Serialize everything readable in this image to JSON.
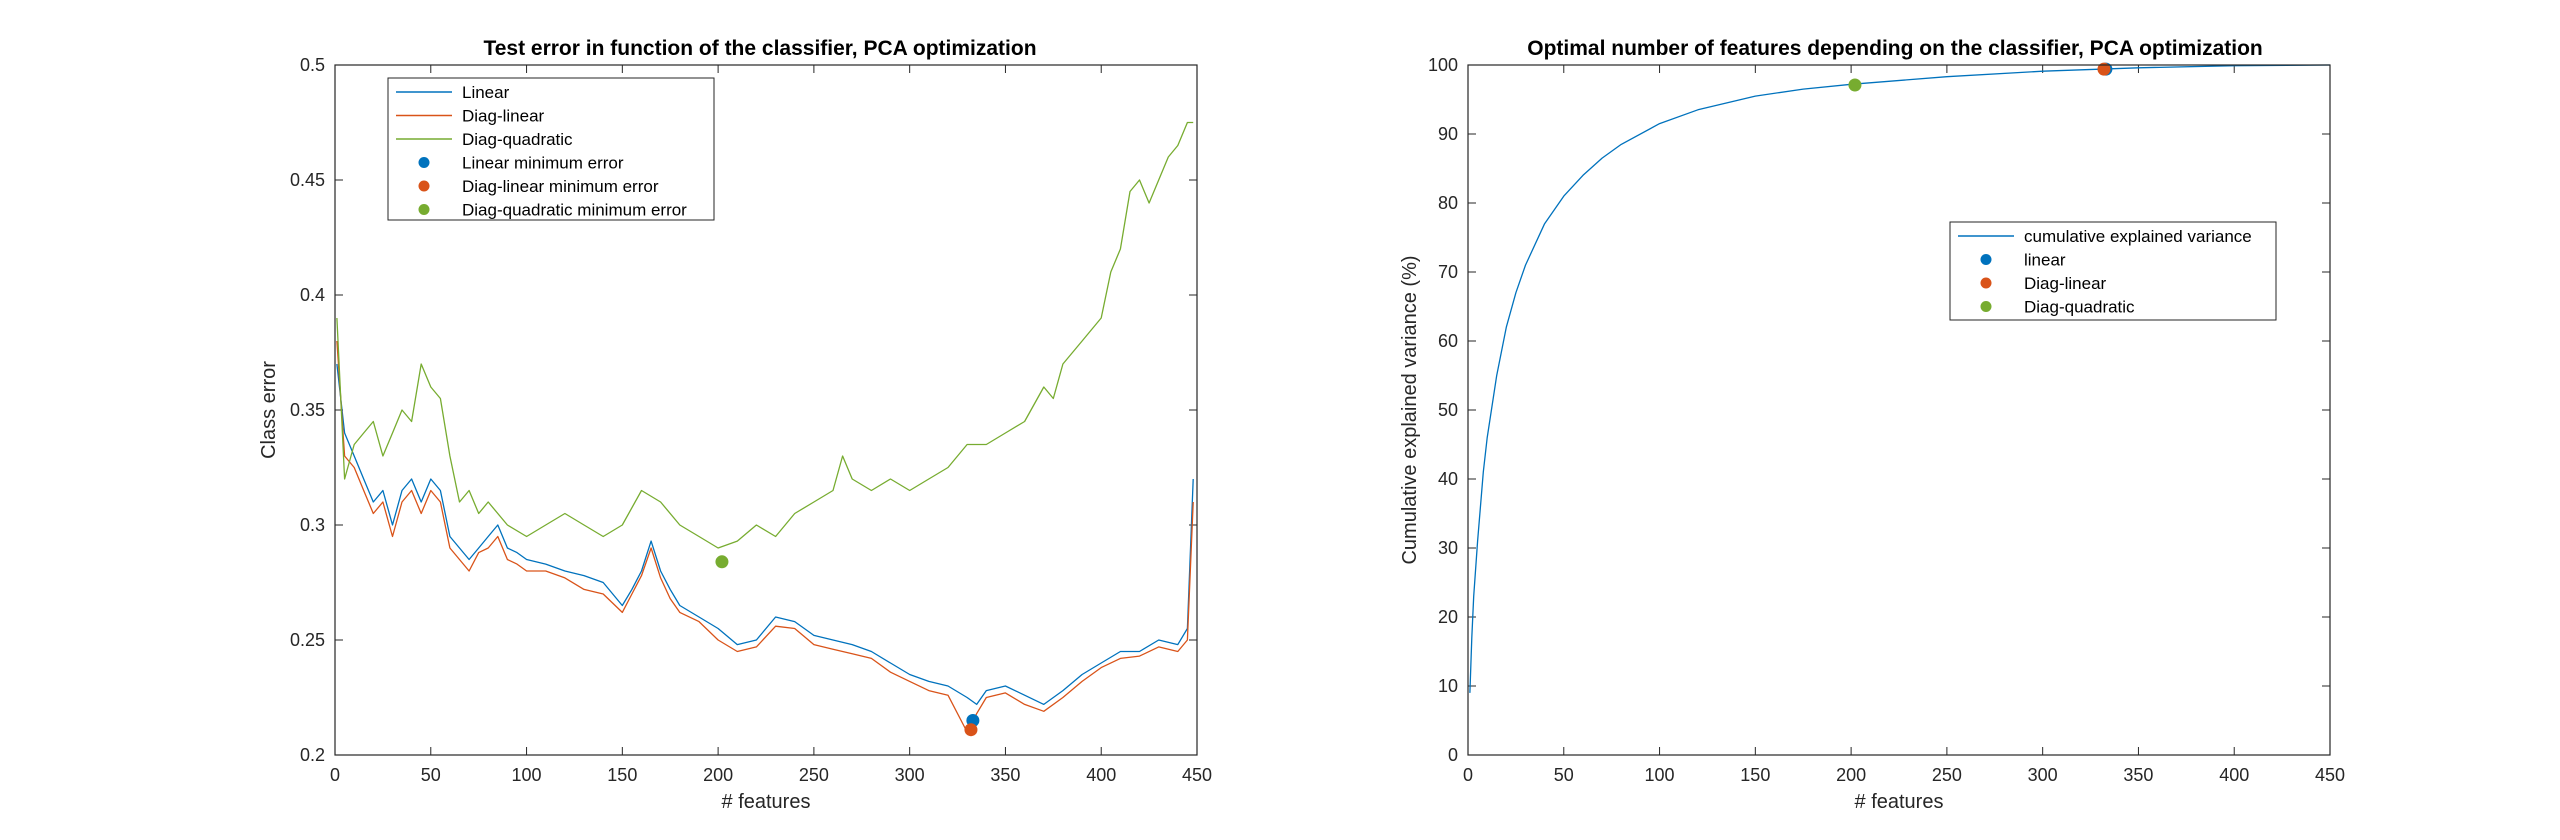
{
  "chart_data": [
    {
      "type": "line",
      "title": "Test error in function of the classifier, PCA optimization",
      "xlabel": "# features",
      "ylabel": "Class error",
      "xlim": [
        0,
        450
      ],
      "ylim": [
        0.2,
        0.5
      ],
      "xticks": [
        "0",
        "50",
        "100",
        "150",
        "200",
        "250",
        "300",
        "350",
        "400",
        "450"
      ],
      "yticks": [
        "0.2",
        "0.25",
        "0.3",
        "0.35",
        "0.4",
        "0.45",
        "0.5"
      ],
      "grid": false,
      "legend_position": "top-left",
      "colors": {
        "blue": "#0072BD",
        "orange": "#D95319",
        "green": "#77AC30"
      },
      "series": [
        {
          "name": "Linear",
          "color": "#0072BD",
          "kind": "line",
          "x": [
            1,
            5,
            10,
            15,
            20,
            25,
            30,
            35,
            40,
            45,
            50,
            55,
            60,
            65,
            70,
            75,
            80,
            85,
            90,
            95,
            100,
            110,
            120,
            130,
            140,
            150,
            155,
            160,
            165,
            170,
            175,
            180,
            190,
            200,
            210,
            220,
            230,
            240,
            250,
            260,
            270,
            280,
            290,
            300,
            310,
            320,
            330,
            335,
            340,
            350,
            360,
            370,
            380,
            390,
            400,
            410,
            420,
            430,
            440,
            445,
            448
          ],
          "y": [
            0.37,
            0.34,
            0.33,
            0.32,
            0.31,
            0.315,
            0.3,
            0.315,
            0.32,
            0.31,
            0.32,
            0.315,
            0.295,
            0.29,
            0.285,
            0.29,
            0.295,
            0.3,
            0.29,
            0.288,
            0.285,
            0.283,
            0.28,
            0.278,
            0.275,
            0.265,
            0.272,
            0.28,
            0.293,
            0.28,
            0.272,
            0.265,
            0.26,
            0.255,
            0.248,
            0.25,
            0.26,
            0.258,
            0.252,
            0.25,
            0.248,
            0.245,
            0.24,
            0.235,
            0.232,
            0.23,
            0.225,
            0.222,
            0.228,
            0.23,
            0.226,
            0.222,
            0.228,
            0.235,
            0.24,
            0.245,
            0.245,
            0.25,
            0.248,
            0.255,
            0.32
          ]
        },
        {
          "name": "Diag-linear",
          "color": "#D95319",
          "kind": "line",
          "x": [
            1,
            5,
            10,
            15,
            20,
            25,
            30,
            35,
            40,
            45,
            50,
            55,
            60,
            65,
            70,
            75,
            80,
            85,
            90,
            95,
            100,
            110,
            120,
            130,
            140,
            150,
            155,
            160,
            165,
            170,
            175,
            180,
            190,
            200,
            210,
            220,
            230,
            240,
            250,
            260,
            270,
            280,
            290,
            300,
            310,
            320,
            330,
            335,
            340,
            350,
            360,
            370,
            380,
            390,
            400,
            410,
            420,
            430,
            440,
            445,
            448
          ],
          "y": [
            0.38,
            0.33,
            0.325,
            0.315,
            0.305,
            0.31,
            0.295,
            0.31,
            0.315,
            0.305,
            0.315,
            0.31,
            0.29,
            0.285,
            0.28,
            0.288,
            0.29,
            0.295,
            0.285,
            0.283,
            0.28,
            0.28,
            0.277,
            0.272,
            0.27,
            0.262,
            0.27,
            0.278,
            0.29,
            0.277,
            0.268,
            0.262,
            0.258,
            0.25,
            0.245,
            0.247,
            0.256,
            0.255,
            0.248,
            0.246,
            0.244,
            0.242,
            0.236,
            0.232,
            0.228,
            0.226,
            0.21,
            0.218,
            0.225,
            0.227,
            0.222,
            0.219,
            0.225,
            0.232,
            0.238,
            0.242,
            0.243,
            0.247,
            0.245,
            0.25,
            0.31
          ]
        },
        {
          "name": "Diag-quadratic",
          "color": "#77AC30",
          "kind": "line",
          "x": [
            1,
            5,
            10,
            15,
            20,
            25,
            30,
            35,
            40,
            45,
            50,
            55,
            60,
            65,
            70,
            75,
            80,
            90,
            100,
            110,
            120,
            130,
            140,
            150,
            160,
            170,
            180,
            190,
            200,
            210,
            220,
            230,
            240,
            250,
            260,
            265,
            270,
            280,
            290,
            300,
            310,
            320,
            330,
            340,
            350,
            360,
            370,
            375,
            380,
            390,
            400,
            405,
            410,
            415,
            420,
            425,
            430,
            435,
            440,
            445,
            448
          ],
          "y": [
            0.39,
            0.32,
            0.335,
            0.34,
            0.345,
            0.33,
            0.34,
            0.35,
            0.345,
            0.37,
            0.36,
            0.355,
            0.33,
            0.31,
            0.315,
            0.305,
            0.31,
            0.3,
            0.295,
            0.3,
            0.305,
            0.3,
            0.295,
            0.3,
            0.315,
            0.31,
            0.3,
            0.295,
            0.29,
            0.293,
            0.3,
            0.295,
            0.305,
            0.31,
            0.315,
            0.33,
            0.32,
            0.315,
            0.32,
            0.315,
            0.32,
            0.325,
            0.335,
            0.335,
            0.34,
            0.345,
            0.36,
            0.355,
            0.37,
            0.38,
            0.39,
            0.41,
            0.42,
            0.445,
            0.45,
            0.44,
            0.45,
            0.46,
            0.465,
            0.475,
            0.475
          ]
        },
        {
          "name": "Linear minimum error",
          "color": "#0072BD",
          "kind": "point",
          "x": [
            333
          ],
          "y": [
            0.215
          ]
        },
        {
          "name": "Diag-linear minimum error",
          "color": "#D95319",
          "kind": "point",
          "x": [
            332
          ],
          "y": [
            0.211
          ]
        },
        {
          "name": "Diag-quadratic minimum error",
          "color": "#77AC30",
          "kind": "point",
          "x": [
            202
          ],
          "y": [
            0.284
          ]
        }
      ]
    },
    {
      "type": "line",
      "title": "Optimal number of features depending on the classifier, PCA optimization",
      "xlabel": "# features",
      "ylabel": "Cumulative explained variance (%)",
      "xlim": [
        0,
        450
      ],
      "ylim": [
        0,
        100
      ],
      "xticks": [
        "0",
        "50",
        "100",
        "150",
        "200",
        "250",
        "300",
        "350",
        "400",
        "450"
      ],
      "yticks": [
        "0",
        "10",
        "20",
        "30",
        "40",
        "50",
        "60",
        "70",
        "80",
        "90",
        "100"
      ],
      "grid": false,
      "legend_position": "right",
      "series": [
        {
          "name": "cumulative explained variance",
          "color": "#0072BD",
          "kind": "line",
          "x": [
            1,
            2,
            3,
            5,
            8,
            10,
            15,
            20,
            25,
            30,
            40,
            50,
            60,
            70,
            80,
            100,
            120,
            150,
            175,
            200,
            250,
            300,
            350,
            400,
            450
          ],
          "y": [
            9,
            17,
            23,
            31,
            41,
            46,
            55,
            62,
            67,
            71,
            77,
            81,
            84,
            86.5,
            88.5,
            91.5,
            93.5,
            95.5,
            96.5,
            97.2,
            98.3,
            99.1,
            99.6,
            99.9,
            100
          ]
        },
        {
          "name": "linear",
          "color": "#0072BD",
          "kind": "point",
          "x": [
            333
          ],
          "y": [
            99.4
          ]
        },
        {
          "name": "Diag-linear",
          "color": "#D95319",
          "kind": "point",
          "x": [
            332
          ],
          "y": [
            99.4
          ]
        },
        {
          "name": "Diag-quadratic",
          "color": "#77AC30",
          "kind": "point",
          "x": [
            202
          ],
          "y": [
            97.1
          ]
        }
      ]
    }
  ]
}
